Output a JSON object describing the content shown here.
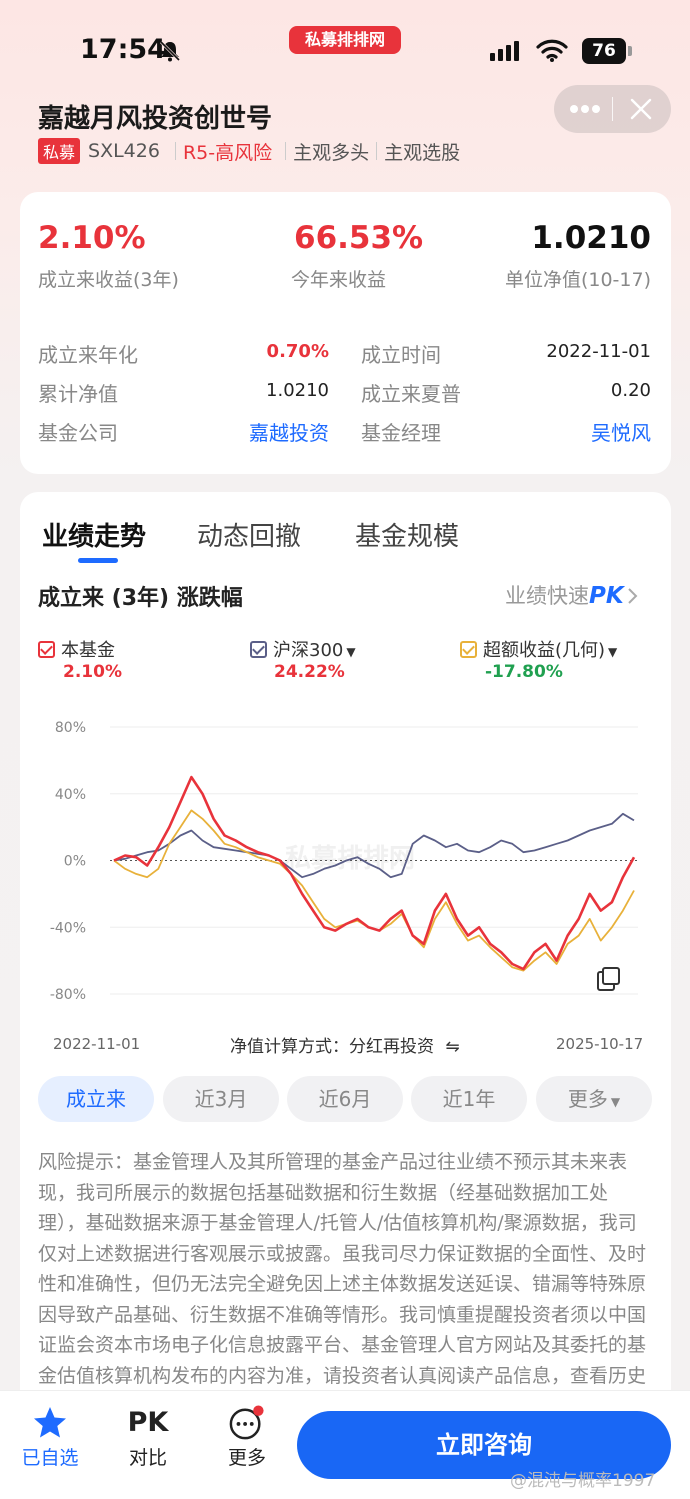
{
  "status_bar": {
    "time": "17:54",
    "brand": "私募排排网",
    "battery": "76"
  },
  "header": {
    "title": "嘉越月风投资创世号",
    "tags": {
      "type": "私募",
      "code": "SXL426",
      "risk": "R5-高风险",
      "strategy1": "主观多头",
      "strategy2": "主观选股"
    }
  },
  "summary": {
    "return_since_inception": {
      "value": "2.10%",
      "label": "成立来收益(3年)"
    },
    "ytd_return": {
      "value": "66.53%",
      "label": "今年来收益"
    },
    "nav": {
      "value": "1.0210",
      "label": "单位净值(10-17)"
    }
  },
  "info": {
    "annualized": {
      "label": "成立来年化",
      "value": "0.70%"
    },
    "inception_date": {
      "label": "成立时间",
      "value": "2022-11-01"
    },
    "cum_nav": {
      "label": "累计净值",
      "value": "1.0210"
    },
    "sharpe": {
      "label": "成立来夏普",
      "value": "0.20"
    },
    "company": {
      "label": "基金公司",
      "value": "嘉越投资"
    },
    "manager": {
      "label": "基金经理",
      "value": "吴悦风"
    }
  },
  "tabs": [
    "业绩走势",
    "动态回撤",
    "基金规模"
  ],
  "section": {
    "title": "成立来 (3年) 涨跌幅",
    "pk_prefix": "业绩快速",
    "pk": "PK"
  },
  "legend": [
    {
      "name": "本基金",
      "value": "2.10%",
      "color": "#e8333b"
    },
    {
      "name": "沪深300",
      "value": "24.22%",
      "color": "#5b5f88"
    },
    {
      "name": "超额收益(几何)",
      "value": "-17.80%",
      "color": "#e8b13a"
    }
  ],
  "chart_watermark": "私募排排网",
  "chart_data": {
    "type": "line",
    "y_ticks": [
      "80%",
      "40%",
      "0%",
      "-40%",
      "-80%"
    ],
    "ylim": [
      -80,
      80
    ],
    "x_start": "2022-11-01",
    "x_end": "2025-10-17",
    "series": [
      {
        "name": "本基金",
        "values": [
          0,
          3,
          2,
          -3,
          8,
          20,
          35,
          50,
          40,
          25,
          15,
          12,
          8,
          5,
          3,
          0,
          -8,
          -20,
          -30,
          -40,
          -42,
          -38,
          -35,
          -40,
          -42,
          -35,
          -30,
          -45,
          -50,
          -30,
          -20,
          -35,
          -45,
          -40,
          -50,
          -55,
          -62,
          -65,
          -55,
          -50,
          -60,
          -45,
          -35,
          -20,
          -30,
          -25,
          -10,
          2
        ]
      },
      {
        "name": "沪深300",
        "values": [
          0,
          1,
          3,
          5,
          6,
          10,
          15,
          18,
          12,
          8,
          7,
          6,
          5,
          4,
          3,
          0,
          -5,
          -10,
          -8,
          -5,
          -3,
          0,
          2,
          -2,
          -5,
          -10,
          -8,
          10,
          15,
          12,
          8,
          10,
          6,
          5,
          8,
          12,
          10,
          5,
          6,
          8,
          10,
          12,
          15,
          18,
          20,
          22,
          28,
          24
        ]
      },
      {
        "name": "超额收益(几何)",
        "values": [
          0,
          -5,
          -8,
          -10,
          -5,
          10,
          20,
          30,
          25,
          18,
          10,
          8,
          5,
          2,
          0,
          -2,
          -8,
          -15,
          -25,
          -35,
          -40,
          -38,
          -36,
          -40,
          -42,
          -38,
          -32,
          -45,
          -52,
          -35,
          -25,
          -38,
          -48,
          -45,
          -52,
          -58,
          -64,
          -66,
          -60,
          -55,
          -62,
          -50,
          -45,
          -35,
          -48,
          -40,
          -30,
          -18
        ]
      }
    ]
  },
  "calc_method": "净值计算方式：分红再投资",
  "periods": [
    "成立来",
    "近3月",
    "近6月",
    "近1年",
    "更多"
  ],
  "risk_text": "风险提示：基金管理人及其所管理的基金产品过往业绩不预示其未来表现，我司所展示的数据包括基础数据和衍生数据（经基础数据加工处理），基础数据来源于基金管理人/托管人/估值核算机构/聚源数据，我司仅对上述数据进行客观展示或披露。虽我司尽力保证数据的全面性、及时性和准确性，但仍无法完全避免因上述主体数据发送延误、错漏等特殊原因导致产品基础、衍生数据不准确等情形。我司慎重提醒投资者须以中国证监会资本市场电子化信息披露平台、基金管理人官方网站及其委托的基金估值核算机构发布的内容为准，请投资者认真阅读产品信息，查看历史净值等各项数据的波动及来源情况，审慎独立地作出投资决策。",
  "bottom": {
    "fav": "已自选",
    "pk_icon": "PK",
    "pk": "对比",
    "more": "更多",
    "consult": "立即咨询"
  },
  "watermark": "@混沌与概率1997"
}
